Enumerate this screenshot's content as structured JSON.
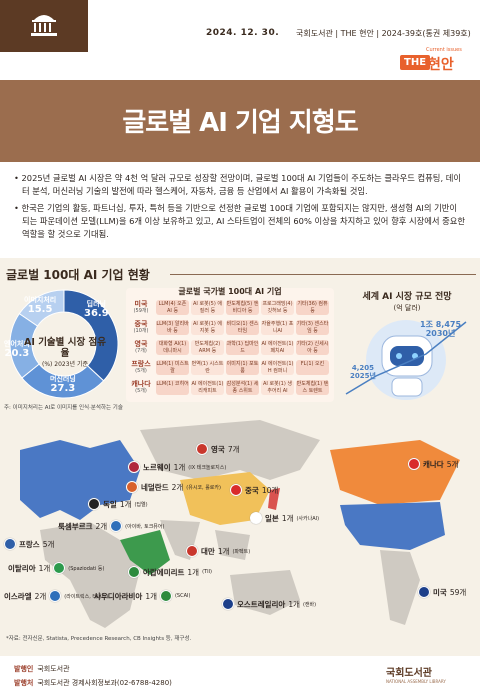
{
  "header": {
    "date": "2024. 12. 30.",
    "publication": "국회도서관 | THE 현안 | 2024-39호(통권 제39호)",
    "brand_the": "THE",
    "brand_hyun": "현안",
    "brand_sub": "Current issues"
  },
  "title": "글로벌 AI 기업 지형도",
  "summary": [
    "• 2025년 글로벌 AI 시장은 약 4천 억 달러 규모로 성장할 전망이며, 글로벌 100대 AI 기업들이 주도하는 클라우드 컴퓨팅, 데이터 분석, 머신러닝 기술의 발전에 따라 헬스케어, 자동차, 금융 등 산업에서 AI 활용이 가속화될 것임.",
    "• 한국은 기업의 활동, 파트너십, 투자, 특허 등을 기반으로 선정한 글로벌 100대 기업에 포함되지는 않지만, 생성형 AI의 기반이 되는 파운데이션 모델(LLM)을 6개 이상 보유하고 있고, AI 스타트업이 전체의 60% 이상을 차지하고 있어 향후 시장에서 중요한 역할을 할 것으로 기대됨."
  ],
  "section_title": "글로벌 100대 AI 기업 현황",
  "share_chart": {
    "center_title": "AI 기술별 시장 점유율",
    "center_sub": "(%) 2023년 기준",
    "segments": [
      {
        "label": "딥러닝",
        "value": 36.9,
        "color": "#2f5fa8"
      },
      {
        "label": "머신러닝",
        "value": 27.3,
        "color": "#5f92d6"
      },
      {
        "label": "엔어처리",
        "value": 20.3,
        "color": "#86b0e4"
      },
      {
        "label": "이미지처리",
        "value": 15.5,
        "color": "#b7d0f0"
      }
    ],
    "note": "주: 이미지처리는 AI로 이미지를 인식·분석하는 기술"
  },
  "country_panel": {
    "title": "글로벌 국가별 100대 AI 기업",
    "rows": [
      {
        "name": "미국",
        "count": "(59개)",
        "tags": [
          "LLM(4) 오픈 AI 등",
          "AI 로봇(5) 애질러 등",
          "반도체칩(5) 엔비디아 등",
          "프로그래밍(4) 깃허브 등",
          "기타(36) 컴퓨 등"
        ]
      },
      {
        "name": "중국",
        "count": "(10개)",
        "tags": [
          "LLM(3) 알리바바 등",
          "AI 로봇(1) 에지봇 등",
          "비디오(1) 센스타임",
          "자율주행(1) 포니AI",
          "기타(3) 센스타임 등"
        ]
      },
      {
        "name": "영국",
        "count": "(7개)",
        "tags": [
          "대화형 AI(1) 데니마시",
          "반도체칩(2) ARM 등",
          "과학(1) 딥마인드",
          "AI 에이전트(1) 페치AI",
          "기타(2) 신세시아 등"
        ]
      },
      {
        "name": "프랑스",
        "count": "(5개)",
        "tags": [
          "LLM(1) 미스트랄",
          "번역(1) 시스트란",
          "이미지(1) 포토룸",
          "AI 에이전트(1) H 컴퍼니",
          "FL(1) 오킨"
        ]
      },
      {
        "name": "캐나다",
        "count": "(5개)",
        "tags": [
          "LLM(1) 코히어",
          "AI 에이전트(1) 리캐피트",
          "감성분석(1) 세종 스위트",
          "AI 로봇(1) 생추어리 AI",
          "반도체칩(1) 텐스 토렌트"
        ]
      }
    ]
  },
  "market": {
    "title": "세계 AI 시장 규모 전망",
    "unit": "(억 달러)",
    "points": [
      {
        "year": "2025년",
        "value": "4,205"
      },
      {
        "year": "2030년",
        "value": "1조 8,475"
      }
    ]
  },
  "map_pins": [
    {
      "name": "영국",
      "count": "7개",
      "sub": ""
    },
    {
      "name": "노르웨이",
      "count": "1개",
      "sub": "(IX 테크놀로지스)"
    },
    {
      "name": "네덜란드",
      "count": "2개",
      "sub": "(유시코, 롤로카)"
    },
    {
      "name": "독일",
      "count": "1개",
      "sub": "(딥엘)"
    },
    {
      "name": "룩셈부르크",
      "count": "2개",
      "sub": "(아이바, 토크뮤어)"
    },
    {
      "name": "프랑스",
      "count": "5개",
      "sub": ""
    },
    {
      "name": "이탈리아",
      "count": "1개",
      "sub": "(Spaziodati 등)"
    },
    {
      "name": "이스라엘",
      "count": "2개",
      "sub": "(라이트릭스, 테니스)"
    },
    {
      "name": "사우디아라비아",
      "count": "1개",
      "sub": "(SCAI)"
    },
    {
      "name": "아랍에미리트",
      "count": "1개",
      "sub": "(TII)"
    },
    {
      "name": "중국",
      "count": "10개",
      "sub": ""
    },
    {
      "name": "일본",
      "count": "1개",
      "sub": "(사카나AI)"
    },
    {
      "name": "대만",
      "count": "1개",
      "sub": "(파펙트)"
    },
    {
      "name": "오스트레일리아",
      "count": "1개",
      "sub": "(캔바)"
    },
    {
      "name": "캐나다",
      "count": "5개",
      "sub": ""
    },
    {
      "name": "미국",
      "count": "59개",
      "sub": ""
    }
  ],
  "source": "*자료: 전자신문, Statista, Precedence Research, CB Insights 등, 재구성.",
  "footer": {
    "publisher_label": "발행인",
    "publisher": "국회도서관",
    "issuer_label": "발행처",
    "issuer": "국회도서관 경제사회정보과(02-6788-4280)",
    "logo": "국회도서관",
    "logo_en": "NATIONAL ASSEMBLY LIBRARY"
  }
}
